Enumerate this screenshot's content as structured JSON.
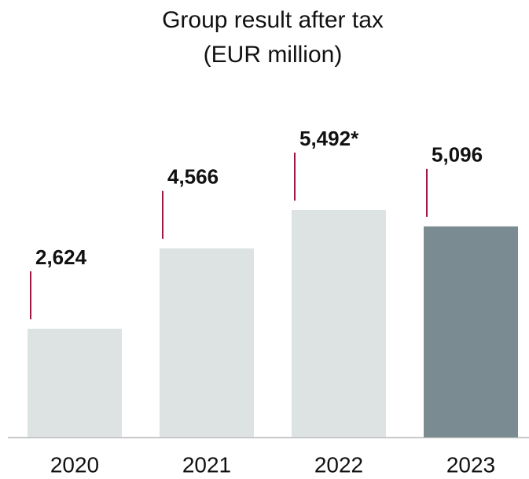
{
  "chart_data": {
    "type": "bar",
    "title": "Group result after tax",
    "subtitle": "(EUR million)",
    "categories": [
      "2020",
      "2021",
      "2022",
      "2023"
    ],
    "values": [
      2624,
      4566,
      5492,
      5096
    ],
    "value_labels": [
      "2,624",
      "4,566",
      "5,492*",
      "5,096"
    ],
    "colors": [
      "#dde2e3",
      "#dde2e3",
      "#dde2e3",
      "#7a8c91"
    ]
  }
}
